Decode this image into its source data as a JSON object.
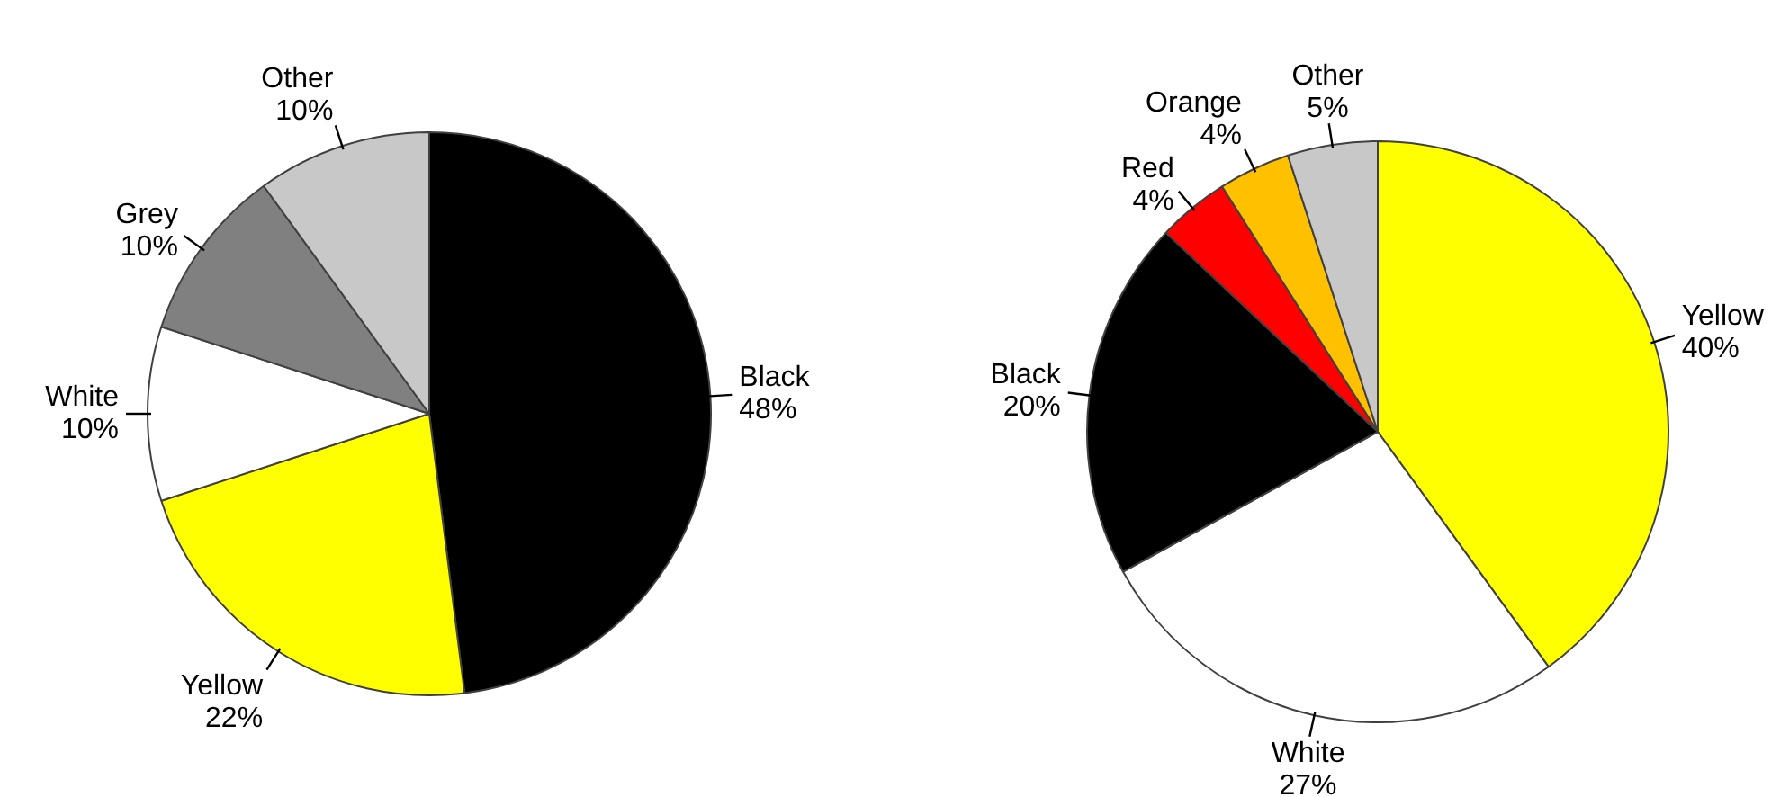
{
  "chart_data": [
    {
      "type": "pie",
      "categories": [
        "Black",
        "Yellow",
        "White",
        "Grey",
        "Other"
      ],
      "values": [
        48,
        22,
        10,
        10,
        10
      ],
      "value_labels": [
        "48%",
        "22%",
        "10%",
        "10%",
        "10%"
      ],
      "colors": [
        "#000000",
        "#ffff00",
        "#ffffff",
        "#808080",
        "#c8c8c8"
      ]
    },
    {
      "type": "pie",
      "categories": [
        "Yellow",
        "White",
        "Black",
        "Red",
        "Orange",
        "Other"
      ],
      "values": [
        40,
        27,
        20,
        4,
        4,
        5
      ],
      "value_labels": [
        "40%",
        "27%",
        "20%",
        "4%",
        "4%",
        "5%"
      ],
      "colors": [
        "#ffff00",
        "#ffffff",
        "#000000",
        "#ff0000",
        "#ffc000",
        "#c8c8c8"
      ]
    }
  ]
}
